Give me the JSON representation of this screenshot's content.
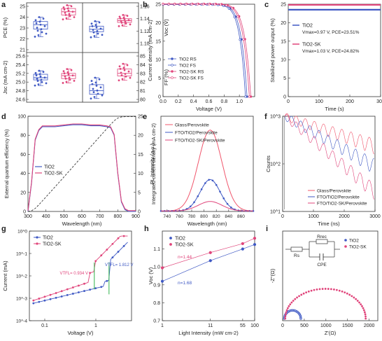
{
  "colors": {
    "blue": "#3f59c4",
    "pink": "#e0457b",
    "red": "#f0556b",
    "green": "#2fb34a",
    "dark": "#3a3a3a"
  },
  "chart_data": [
    {
      "id": "a",
      "panel_label": "a",
      "type": "box",
      "groups": [
        "TiO2",
        "TiO2-SK"
      ],
      "subplots": [
        {
          "ylabel": "PCE (%)",
          "side": "left",
          "ylim": [
            21,
            25
          ],
          "ticks": [
            "21",
            "22",
            "23",
            "24",
            "25"
          ],
          "box": [
            {
              "q1": 22.9,
              "median": 23.3,
              "q3": 23.6,
              "min": 22.2,
              "max": 24.0
            },
            {
              "q1": 24.2,
              "median": 24.5,
              "q3": 24.8,
              "min": 23.8,
              "max": 25.1
            }
          ]
        },
        {
          "ylabel": "Voc (V)",
          "side": "right",
          "ylim": [
            1.09,
            1.16
          ],
          "ticks": [
            "1.10",
            "1.12",
            "1.14",
            "1.16"
          ],
          "box": [
            {
              "q1": 1.119,
              "median": 1.123,
              "q3": 1.128,
              "min": 1.11,
              "max": 1.136
            },
            {
              "q1": 1.134,
              "median": 1.137,
              "q3": 1.14,
              "min": 1.128,
              "max": 1.146
            }
          ]
        },
        {
          "ylabel": "Jsc (mA cm-2)",
          "side": "left",
          "ylim": [
            24.6,
            25.6
          ],
          "ticks": [
            "24.6",
            "24.8",
            "25.0",
            "25.2",
            "25.4",
            "25.6"
          ],
          "box": [
            {
              "q1": 25.05,
              "median": 25.1,
              "q3": 25.18,
              "min": 24.92,
              "max": 25.26
            },
            {
              "q1": 25.08,
              "median": 25.15,
              "q3": 25.2,
              "min": 24.98,
              "max": 25.3
            }
          ]
        },
        {
          "ylabel": "FF (%)",
          "side": "right",
          "ylim": [
            80,
            85
          ],
          "ticks": [
            "80",
            "81",
            "82",
            "83",
            "84",
            "85"
          ],
          "box": [
            {
              "q1": 80.6,
              "median": 81.0,
              "q3": 81.7,
              "min": 80.1,
              "max": 82.5
            },
            {
              "q1": 82.7,
              "median": 83.0,
              "q3": 83.5,
              "min": 82.2,
              "max": 84.1
            }
          ]
        }
      ]
    },
    {
      "id": "b",
      "panel_label": "b",
      "type": "line",
      "xlabel": "Voltage (V)",
      "ylabel": "Current density (mA cm-2)",
      "xlim": [
        0,
        1.2
      ],
      "ylim": [
        0,
        25
      ],
      "xticks": [
        "0.0",
        "0.2",
        "0.4",
        "0.6",
        "0.8",
        "1.0"
      ],
      "yticks": [
        "0",
        "5",
        "10",
        "15",
        "20",
        "25"
      ],
      "legend": "bottom-left",
      "series": [
        {
          "name": "TiO2 RS",
          "jsc": 25.0,
          "voc": 1.1,
          "marker": "circle-filled",
          "color": "blue"
        },
        {
          "name": "TiO2 FS",
          "jsc": 24.9,
          "voc": 1.08,
          "marker": "circle-open",
          "color": "blue"
        },
        {
          "name": "TiO2-SK RS",
          "jsc": 25.1,
          "voc": 1.15,
          "marker": "circle-filled",
          "color": "pink"
        },
        {
          "name": "TiO2-SK FS",
          "jsc": 25.0,
          "voc": 1.13,
          "marker": "circle-open",
          "color": "pink"
        }
      ]
    },
    {
      "id": "c",
      "panel_label": "c",
      "type": "line",
      "xlabel": "Time (s)",
      "ylabel": "Stabilized power output (%)",
      "xlim": [
        0,
        300
      ],
      "ylim": [
        0,
        25
      ],
      "xticks": [
        "0",
        "100",
        "200",
        "300"
      ],
      "yticks": [
        "0",
        "5",
        "10",
        "15",
        "20",
        "25"
      ],
      "series": [
        {
          "name": "TiO2",
          "level": 23.51,
          "color": "blue"
        },
        {
          "name": "TiO2-SK",
          "level": 24.82,
          "color": "pink"
        }
      ],
      "annotations": [
        "Vmax=0.97 V, PCE=23.51%",
        "Vmax=1.03 V, PCE=24.82%"
      ]
    },
    {
      "id": "d",
      "panel_label": "d",
      "type": "line",
      "xlabel": "Wavelength (nm)",
      "ylabel": "External quantum efficiency (%)",
      "ylabel_right": "Intergrated current density (mA cm-2)",
      "xlim": [
        300,
        900
      ],
      "ylim": [
        0,
        100
      ],
      "y2lim": [
        0,
        25
      ],
      "xticks": [
        "300",
        "400",
        "500",
        "600",
        "700",
        "800",
        "900"
      ],
      "yticks": [
        "0",
        "20",
        "40",
        "60",
        "80",
        "100"
      ],
      "y2ticks": [
        "0",
        "5",
        "10",
        "15",
        "20",
        "25"
      ],
      "legend": "middle-left",
      "eqe_points": {
        "x": [
          300,
          320,
          340,
          360,
          380,
          400,
          450,
          500,
          550,
          600,
          650,
          700,
          740,
          760,
          780,
          800,
          820,
          840,
          860,
          900
        ],
        "y": [
          0,
          30,
          75,
          85,
          89,
          89,
          89,
          90,
          91,
          91,
          90,
          90,
          89,
          88,
          80,
          40,
          10,
          2,
          0,
          0
        ]
      },
      "series": [
        {
          "name": "TiO2",
          "color": "blue"
        },
        {
          "name": "TiO2-SK",
          "color": "pink"
        }
      ]
    },
    {
      "id": "e",
      "panel_label": "e",
      "type": "line",
      "xlabel": "Wavelength (nm)",
      "ylabel": "PL Intensity (a.u.)",
      "xlim": [
        730,
        880
      ],
      "xticks": [
        "740",
        "760",
        "780",
        "800",
        "820",
        "840",
        "860"
      ],
      "peak_x": 810,
      "series": [
        {
          "name": "Glass/Perovskite",
          "peak": 0.85,
          "width": 27,
          "color": "red"
        },
        {
          "name": "FTO/TiO2/Perovskite",
          "peak": 0.33,
          "width": 23,
          "color": "blue"
        },
        {
          "name": "FTO/TiO2-SK/Perovskite",
          "peak": 0.1,
          "width": 27,
          "color": "pink"
        }
      ]
    },
    {
      "id": "f",
      "panel_label": "f",
      "type": "line",
      "xlabel": "Time (ns)",
      "ylabel": "Counts",
      "xlim": [
        0,
        3000
      ],
      "ylog": true,
      "ylim": [
        10,
        1000
      ],
      "xticks": [
        "0",
        "1000",
        "2000",
        "3000"
      ],
      "yticks": [
        "10^1",
        "10^2",
        "10^3"
      ],
      "series": [
        {
          "name": "Glass/Perovskite",
          "start": 1000,
          "end": 250,
          "color": "red"
        },
        {
          "name": "FTO/TiO2/Perovskite",
          "start": 1000,
          "end": 95,
          "color": "blue"
        },
        {
          "name": "FTO/TiO2-SK/Perovskite",
          "start": 1000,
          "end": 28,
          "color": "pink"
        }
      ]
    },
    {
      "id": "g",
      "panel_label": "g",
      "type": "line",
      "xlabel": "Voltage (V)",
      "ylabel": "Current (mA)",
      "xlog": true,
      "ylog": true,
      "xlim": [
        0.05,
        5
      ],
      "ylim": [
        0.0001,
        1
      ],
      "xticks": [
        "0.1",
        "1"
      ],
      "yticks": [
        "10^-4",
        "10^-3",
        "10^-2",
        "10^-1",
        "10^0"
      ],
      "series": [
        {
          "name": "TiO2",
          "vtfl": 1.812,
          "color": "blue"
        },
        {
          "name": "TiO2-SK",
          "vtfl": 0.934,
          "color": "pink"
        }
      ],
      "annotations": [
        "VTFL= 0.934 V",
        "VTFL= 1.812 V"
      ]
    },
    {
      "id": "h",
      "panel_label": "h",
      "type": "scatter",
      "xlabel": "Light Intensity (mW cm-2)",
      "ylabel": "Voc (V)",
      "xlog": true,
      "xlim": [
        1,
        100
      ],
      "ylim": [
        0.7,
        1.2
      ],
      "xticks": [
        "1",
        "11",
        "55",
        "100"
      ],
      "yticks": [
        "0.7",
        "0.8",
        "0.9",
        "1.0",
        "1.1"
      ],
      "series": [
        {
          "name": "TiO2",
          "x": [
            1,
            11,
            55,
            100
          ],
          "y": [
            0.92,
            1.035,
            1.1,
            1.125
          ],
          "color": "blue"
        },
        {
          "name": "TiO2-SK",
          "x": [
            1,
            11,
            55,
            100
          ],
          "y": [
            0.995,
            1.08,
            1.13,
            1.16
          ],
          "color": "pink"
        }
      ],
      "annotations": [
        "n=1.44",
        "n=1.68"
      ]
    },
    {
      "id": "i",
      "panel_label": "i",
      "type": "scatter",
      "xlabel": "Z'(Ω)",
      "ylabel": "-Z''(Ω)",
      "xlim": [
        0,
        2200
      ],
      "xticks": [
        "0",
        "500",
        "1000",
        "1500",
        "2000"
      ],
      "series": [
        {
          "name": "TiO2",
          "r_start": 40,
          "r_end": 420,
          "color": "blue"
        },
        {
          "name": "TiO2-SK",
          "r_start": 60,
          "r_end": 1920,
          "color": "pink"
        }
      ],
      "circuit_labels": [
        "Rs",
        "Rrec",
        "CPE"
      ]
    }
  ]
}
